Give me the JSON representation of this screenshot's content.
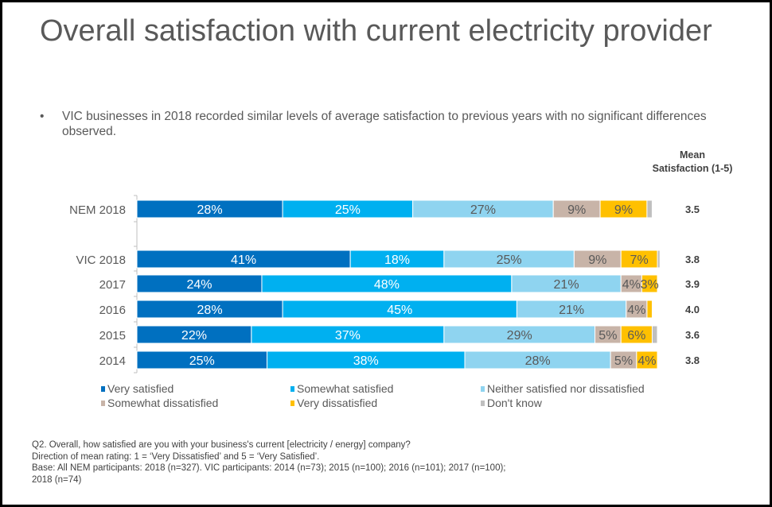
{
  "title": "Overall satisfaction with current electricity provider",
  "bullet": "VIC businesses in 2018 recorded similar levels of average satisfaction to previous years with no significant differences observed.",
  "bullet_marker": "•",
  "mean_header": "Mean Satisfaction (1-5)",
  "chart_data": {
    "type": "bar",
    "orientation": "horizontal",
    "stacked": true,
    "xlim": [
      0,
      100
    ],
    "unit": "%",
    "categories": [
      "NEM 2018",
      "VIC 2018",
      "2017",
      "2016",
      "2015",
      "2014"
    ],
    "series": [
      {
        "name": "Very satisfied",
        "color": "#0070C0",
        "label_color": "#ffffff",
        "values": [
          28,
          41,
          24,
          28,
          22,
          25
        ]
      },
      {
        "name": "Somewhat satisfied",
        "color": "#00B0F0",
        "label_color": "#ffffff",
        "values": [
          25,
          18,
          48,
          45,
          37,
          38
        ]
      },
      {
        "name": "Neither satisfied nor dissatisfied",
        "color": "#8FD4F0",
        "label_color": "#595959",
        "values": [
          27,
          25,
          21,
          21,
          29,
          28
        ]
      },
      {
        "name": "Somewhat dissatisfied",
        "color": "#C8B4A8",
        "label_color": "#595959",
        "values": [
          9,
          9,
          4,
          4,
          5,
          5
        ]
      },
      {
        "name": "Very dissatisfied",
        "color": "#FFC000",
        "label_color": "#595959",
        "values": [
          9,
          7,
          3,
          1,
          6,
          4
        ]
      },
      {
        "name": "Don't know",
        "color": "#BFBFBF",
        "label_color": "#595959",
        "values": [
          1,
          0.5,
          0,
          0,
          1,
          0
        ]
      }
    ],
    "data_labels": [
      [
        "28%",
        "25%",
        "27%",
        "9%",
        "9%",
        ""
      ],
      [
        "41%",
        "18%",
        "25%",
        "9%",
        "7%",
        ""
      ],
      [
        "24%",
        "48%",
        "21%",
        "4%",
        "3%",
        ""
      ],
      [
        "28%",
        "45%",
        "21%",
        "4%",
        "",
        ""
      ],
      [
        "22%",
        "37%",
        "29%",
        "5%",
        "6%",
        ""
      ],
      [
        "25%",
        "38%",
        "28%",
        "5%",
        "4%",
        ""
      ]
    ],
    "mean_satisfaction": [
      "3.5",
      "3.8",
      "3.9",
      "4.0",
      "3.6",
      "3.8"
    ],
    "legend_placement": "bottom",
    "grid": false
  },
  "legend": [
    "Very satisfied",
    "Somewhat satisfied",
    "Neither satisfied nor dissatisfied",
    "Somewhat dissatisfied",
    "Very dissatisfied",
    "Don't know"
  ],
  "footnote": [
    "Q2. Overall, how satisfied are you with your business's current [electricity / energy] company?",
    "Direction of mean rating: 1 = ‘Very Dissatisfied’ and 5  = ‘Very Satisfied’.",
    "Base: All NEM participants: 2018 (n=327). VIC participants: 2014 (n=73); 2015 (n=100); 2016 (n=101); 2017 (n=100);",
    "2018 (n=74)"
  ]
}
